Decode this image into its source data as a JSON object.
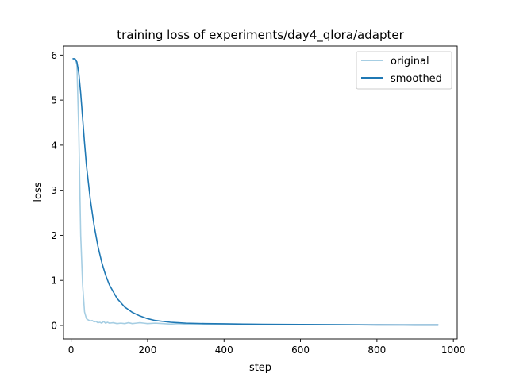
{
  "chart_data": {
    "type": "line",
    "title": "training loss of experiments/day4_qlora/adapter",
    "xlabel": "step",
    "ylabel": "loss",
    "xlim": [
      -20,
      1010
    ],
    "ylim": [
      -0.3,
      6.2
    ],
    "xticks": [
      0,
      200,
      400,
      600,
      800,
      1000
    ],
    "yticks": [
      0,
      1,
      2,
      3,
      4,
      5,
      6
    ],
    "grid": false,
    "legend_position": "top-right",
    "series": [
      {
        "name": "original",
        "color": "#a6cee3",
        "x": [
          5,
          10,
          15,
          20,
          25,
          30,
          35,
          40,
          45,
          50,
          55,
          60,
          65,
          70,
          75,
          80,
          85,
          90,
          95,
          100,
          110,
          120,
          130,
          140,
          150,
          160,
          170,
          180,
          190,
          200,
          220,
          240,
          260,
          280,
          300,
          350,
          400,
          450,
          500,
          600,
          700,
          800,
          900,
          960
        ],
        "y": [
          5.92,
          5.9,
          5.8,
          4.3,
          2.0,
          0.9,
          0.3,
          0.15,
          0.12,
          0.1,
          0.11,
          0.08,
          0.09,
          0.06,
          0.07,
          0.05,
          0.09,
          0.05,
          0.07,
          0.05,
          0.06,
          0.04,
          0.05,
          0.04,
          0.06,
          0.04,
          0.05,
          0.06,
          0.05,
          0.04,
          0.05,
          0.04,
          0.03,
          0.04,
          0.03,
          0.03,
          0.02,
          0.03,
          0.02,
          0.02,
          0.02,
          0.01,
          0.01,
          0.01
        ]
      },
      {
        "name": "smoothed",
        "color": "#1f78b4",
        "x": [
          5,
          10,
          15,
          20,
          25,
          30,
          35,
          40,
          50,
          60,
          70,
          80,
          90,
          100,
          120,
          140,
          160,
          180,
          200,
          220,
          240,
          260,
          280,
          300,
          350,
          400,
          450,
          500,
          600,
          700,
          800,
          900,
          960
        ],
        "y": [
          5.92,
          5.92,
          5.85,
          5.6,
          5.15,
          4.6,
          4.05,
          3.55,
          2.8,
          2.22,
          1.76,
          1.4,
          1.12,
          0.9,
          0.6,
          0.41,
          0.29,
          0.21,
          0.15,
          0.11,
          0.09,
          0.07,
          0.06,
          0.05,
          0.04,
          0.035,
          0.03,
          0.025,
          0.02,
          0.015,
          0.012,
          0.01,
          0.01
        ]
      }
    ]
  }
}
